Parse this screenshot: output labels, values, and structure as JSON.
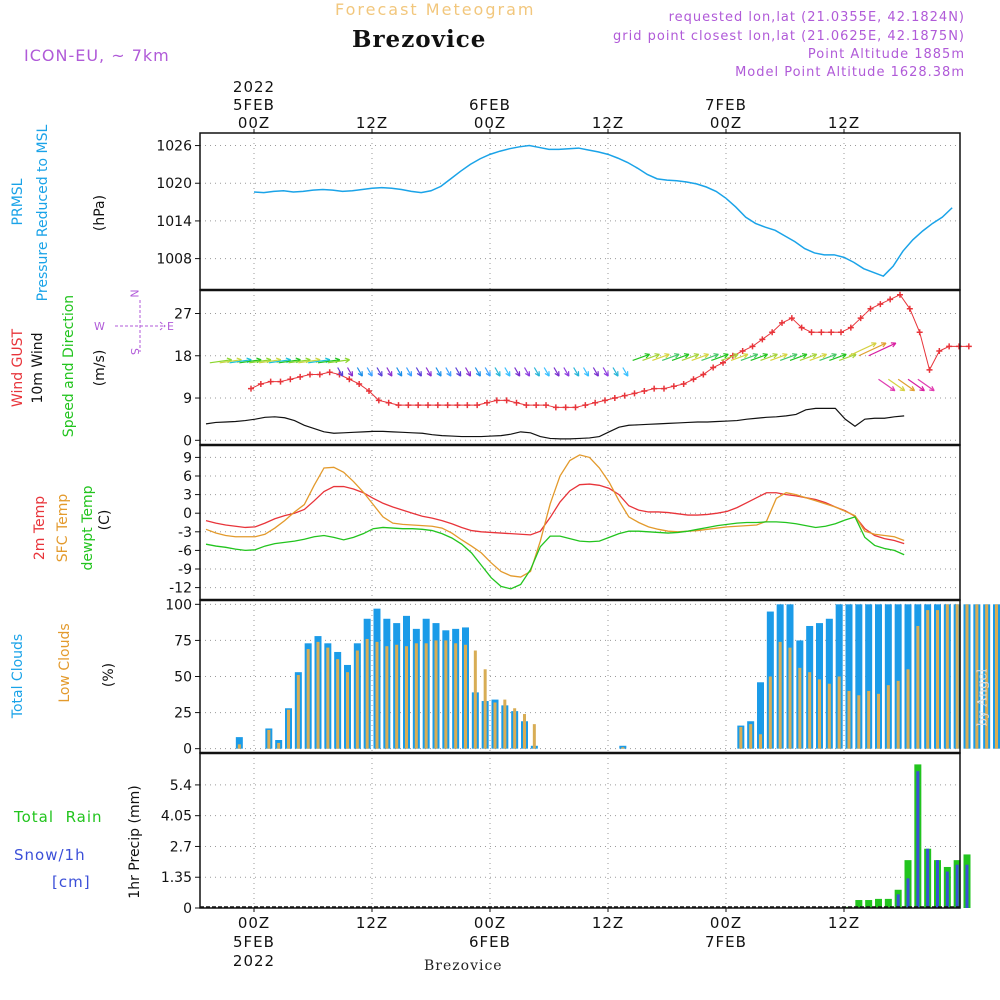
{
  "header": {
    "super_title": "Forecast Meteogram",
    "title": "Brezovice",
    "model": "ICON-EU, ~ 7km",
    "requested": "requested lon,lat (21.0355E, 42.1824N)",
    "grid_point": "grid point closest lon,lat (21.0625E, 42.1875N)",
    "point_altitude": "Point Altitude 1885m",
    "model_altitude": "Model Point Altitude 1628.38m",
    "footer": "Brezovice",
    "watermark": "by Angel"
  },
  "time_axis": {
    "top": [
      {
        "label": "00Z",
        "date": "5FEB",
        "year": "2022",
        "hour": 0
      },
      {
        "label": "12Z",
        "hour": 12
      },
      {
        "label": "00Z",
        "date": "6FEB",
        "hour": 24
      },
      {
        "label": "12Z",
        "hour": 36
      },
      {
        "label": "00Z",
        "date": "7FEB",
        "hour": 48
      },
      {
        "label": "12Z",
        "hour": 60
      }
    ],
    "bottom": [
      {
        "label": "00Z",
        "date": "5FEB",
        "year": "2022",
        "hour": 0
      },
      {
        "label": "12Z",
        "hour": 12
      },
      {
        "label": "00Z",
        "date": "6FEB",
        "hour": 24
      },
      {
        "label": "12Z",
        "hour": 36
      },
      {
        "label": "00Z",
        "date": "7FEB",
        "hour": 48
      },
      {
        "label": "12Z",
        "hour": 60
      }
    ]
  },
  "panel_labels": {
    "pressure": {
      "l1": "PRMSL",
      "l2": "Pressure Reduced to MSL",
      "unit": "(hPa)"
    },
    "wind": {
      "l1": "Wind GUST",
      "l2": "10m Wind",
      "l3": "Speed and Direction",
      "unit": "(m/s)",
      "compass_w": "W",
      "compass_e": "E",
      "compass_n": "N",
      "compass_s": "S"
    },
    "temp": {
      "l1": "2m Temp",
      "l2": "SFC Temp",
      "l3": "dewpt Temp",
      "unit": "(C)"
    },
    "clouds": {
      "l1": "Total Clouds",
      "l2": "Low Clouds",
      "unit": "(%)"
    },
    "precip": {
      "l1": "Total  Rain",
      "l2": "Snow/1h",
      "l3": "[cm]",
      "unit": "1hr Precip (mm)"
    }
  },
  "colors": {
    "pressure": "#1aa3e8",
    "gust": "#e8343a",
    "wind": "#111111",
    "temp2m": "#e8343a",
    "sfc": "#e39a2c",
    "dew": "#22c41e",
    "total_cloud": "#1b9be8",
    "low_cloud": "#d8ad55",
    "rain": "#22c41e",
    "snow": "#3b4fd8",
    "purple": "#b05ad8"
  },
  "chart_data": [
    {
      "type": "line",
      "name": "pressure",
      "x_hours_from": "2022-02-05 00Z",
      "ylim": [
        1003,
        1028
      ],
      "yticks": [
        1008,
        1014,
        1020,
        1026
      ],
      "ylabel": "(hPa)",
      "series": [
        {
          "name": "PRMSL",
          "values": [
            1018.6,
            1018.5,
            1018.7,
            1018.8,
            1018.6,
            1018.7,
            1018.9,
            1019.0,
            1018.9,
            1018.7,
            1018.8,
            1019.0,
            1019.2,
            1019.3,
            1019.2,
            1019.0,
            1018.7,
            1018.5,
            1018.8,
            1019.5,
            1020.7,
            1021.9,
            1023.0,
            1023.9,
            1024.6,
            1025.1,
            1025.5,
            1025.8,
            1026.0,
            1025.7,
            1025.4,
            1025.4,
            1025.5,
            1025.6,
            1025.3,
            1025.0,
            1024.6,
            1024.0,
            1023.3,
            1022.4,
            1021.4,
            1020.7,
            1020.5,
            1020.4,
            1020.2,
            1019.9,
            1019.4,
            1018.7,
            1017.6,
            1016.2,
            1014.6,
            1013.6,
            1013.0,
            1012.5,
            1011.6,
            1010.7,
            1009.6,
            1008.9,
            1008.6,
            1008.6,
            1008.2,
            1007.4,
            1006.4,
            1005.8,
            1005.2,
            1006.8,
            1009.2,
            1011.0,
            1012.4,
            1013.6,
            1014.6,
            1016.1
          ]
        }
      ]
    },
    {
      "type": "line",
      "name": "wind",
      "ylim": [
        -1,
        32
      ],
      "yticks": [
        0,
        9,
        18,
        27
      ],
      "ylabel": "(m/s)",
      "series": [
        {
          "name": "Wind GUST",
          "values": [
            11,
            12,
            12.5,
            12.5,
            13,
            13.5,
            14,
            14,
            14.5,
            14,
            13,
            12,
            10.5,
            8.5,
            8,
            7.5,
            7.5,
            7.5,
            7.5,
            7.5,
            7.5,
            7.5,
            7.5,
            7.5,
            8,
            8.5,
            8.5,
            8,
            7.5,
            7.5,
            7.5,
            7,
            7,
            7,
            7.5,
            8,
            8.5,
            9,
            9.5,
            10,
            10.5,
            11,
            11,
            11.5,
            12,
            13,
            14,
            15.5,
            16.5,
            18,
            19,
            20,
            21.5,
            23,
            25,
            26,
            24,
            23,
            23,
            23,
            23,
            24,
            26,
            28,
            29,
            30,
            31,
            28,
            23,
            15,
            19,
            20,
            20,
            20
          ]
        },
        {
          "name": "10m Wind",
          "values": [
            3.5,
            3.8,
            3.9,
            4.0,
            4.2,
            4.5,
            4.9,
            5.0,
            4.8,
            4.2,
            3.2,
            2.5,
            1.8,
            1.5,
            1.6,
            1.7,
            1.8,
            1.9,
            1.9,
            1.8,
            1.7,
            1.6,
            1.5,
            1.2,
            1.0,
            0.9,
            0.8,
            0.8,
            0.8,
            0.9,
            1.0,
            1.3,
            1.8,
            1.6,
            0.8,
            0.4,
            0.3,
            0.3,
            0.4,
            0.5,
            0.8,
            1.8,
            2.8,
            3.2,
            3.3,
            3.4,
            3.5,
            3.6,
            3.7,
            3.8,
            3.9,
            3.9,
            4.0,
            4.1,
            4.2,
            4.5,
            4.7,
            4.9,
            5.0,
            5.2,
            5.5,
            6.5,
            6.8,
            6.8,
            6.8,
            4.5,
            3.0,
            4.5,
            4.7,
            4.7,
            5.0,
            5.2
          ]
        }
      ]
    },
    {
      "type": "line",
      "name": "temperature",
      "ylim": [
        -14,
        11
      ],
      "yticks": [
        -12,
        -9,
        -6,
        -3,
        0,
        3,
        6,
        9
      ],
      "ylabel": "(C)",
      "series": [
        {
          "name": "2m Temp",
          "values": [
            -1.2,
            -1.6,
            -1.9,
            -2.1,
            -2.3,
            -2.2,
            -1.6,
            -0.9,
            -0.4,
            0,
            0.6,
            2.0,
            3.5,
            4.3,
            4.3,
            3.9,
            3.3,
            2.4,
            1.6,
            1.0,
            0.5,
            0,
            -0.5,
            -0.8,
            -1.2,
            -1.7,
            -2.3,
            -2.8,
            -3.0,
            -3.1,
            -3.2,
            -3.3,
            -3.4,
            -3.5,
            -2.9,
            -0.7,
            1.8,
            3.6,
            4.6,
            4.7,
            4.5,
            4.0,
            3.0,
            1.2,
            0.5,
            0.2,
            0.2,
            0.1,
            -0.1,
            -0.3,
            -0.3,
            -0.2,
            0,
            0.3,
            0.9,
            1.7,
            2.5,
            3.3,
            3.3,
            3.0,
            2.8,
            2.5,
            2.2,
            1.7,
            1.0,
            0.4,
            -0.5,
            -2.5,
            -3.6,
            -4.1,
            -4.4,
            -4.9
          ]
        },
        {
          "name": "SFC Temp",
          "values": [
            -2.6,
            -3.2,
            -3.6,
            -3.8,
            -3.8,
            -3.8,
            -3.4,
            -2.4,
            -1.2,
            0.2,
            1.4,
            4.5,
            7.3,
            7.4,
            6.6,
            5.1,
            3.4,
            1.4,
            -0.6,
            -1.6,
            -1.8,
            -1.9,
            -2.0,
            -2.1,
            -2.4,
            -3.2,
            -4.3,
            -5.3,
            -6.4,
            -8.0,
            -9.4,
            -10.1,
            -10.3,
            -9.4,
            -4.5,
            1.5,
            6.0,
            8.5,
            9.4,
            9.0,
            7.3,
            5.0,
            2.0,
            -0.6,
            -1.5,
            -2.2,
            -2.6,
            -2.9,
            -3.0,
            -2.9,
            -2.8,
            -2.6,
            -2.4,
            -2.2,
            -2.1,
            -2.0,
            -1.9,
            -1.3,
            2.4,
            3.3,
            3.0,
            2.5,
            2.0,
            1.5,
            1.0,
            0.3,
            -0.4,
            -2.9,
            -3.4,
            -3.6,
            -3.8,
            -4.4
          ]
        },
        {
          "name": "dewpt Temp",
          "values": [
            -5.0,
            -5.3,
            -5.5,
            -5.8,
            -6.0,
            -5.9,
            -5.3,
            -4.9,
            -4.7,
            -4.5,
            -4.2,
            -3.8,
            -3.6,
            -3.9,
            -4.3,
            -3.9,
            -3.3,
            -2.5,
            -2.3,
            -2.4,
            -2.5,
            -2.5,
            -2.6,
            -2.8,
            -3.3,
            -4.0,
            -5.0,
            -6.4,
            -8.4,
            -10.4,
            -11.8,
            -12.2,
            -11.5,
            -9.1,
            -5.4,
            -3.7,
            -3.7,
            -4.1,
            -4.5,
            -4.6,
            -4.5,
            -3.9,
            -3.3,
            -2.9,
            -2.9,
            -3.0,
            -3.1,
            -3.2,
            -3.1,
            -2.9,
            -2.6,
            -2.3,
            -2.0,
            -1.8,
            -1.6,
            -1.5,
            -1.5,
            -1.4,
            -1.4,
            -1.5,
            -1.7,
            -2.0,
            -2.3,
            -2.1,
            -1.7,
            -1.1,
            -0.6,
            -3.9,
            -5.2,
            -5.7,
            -6.0,
            -6.7
          ]
        }
      ]
    },
    {
      "type": "bar",
      "name": "clouds",
      "ylim": [
        -3,
        103
      ],
      "yticks": [
        0,
        25,
        50,
        75,
        100
      ],
      "ylabel": "(%)",
      "series": [
        {
          "name": "Total Clouds",
          "values": [
            0,
            0,
            0,
            0,
            8,
            0,
            0,
            14,
            6,
            28,
            53,
            73,
            78,
            73,
            67,
            58,
            73,
            90,
            97,
            90,
            87,
            92,
            83,
            90,
            87,
            82,
            83,
            84,
            39,
            33,
            34,
            30,
            26,
            19,
            2,
            0,
            0,
            0,
            0,
            0,
            0,
            0,
            0,
            2,
            0,
            0,
            0,
            0,
            0,
            0,
            0,
            0,
            0,
            0,
            0,
            16,
            19,
            46,
            95,
            100,
            100,
            75,
            85,
            87,
            90,
            100,
            100,
            100,
            100,
            100,
            100,
            100,
            100,
            100,
            100,
            100,
            100,
            100,
            100,
            100,
            100,
            100
          ]
        },
        {
          "name": "Low Clouds",
          "values": [
            0,
            0,
            0,
            0,
            3,
            0,
            0,
            13,
            4,
            27,
            51,
            69,
            74,
            70,
            62,
            53,
            68,
            76,
            74,
            71,
            72,
            71,
            73,
            73,
            75,
            75,
            73,
            72,
            68,
            55,
            32,
            34,
            28,
            24,
            17,
            0,
            0,
            0,
            0,
            0,
            0,
            0,
            0,
            1,
            0,
            0,
            0,
            0,
            0,
            0,
            0,
            0,
            0,
            0,
            0,
            15,
            17,
            10,
            50,
            74,
            70,
            56,
            53,
            48,
            45,
            50,
            40,
            37,
            40,
            38,
            44,
            47,
            55,
            85,
            96,
            96,
            100,
            100,
            100,
            100,
            100,
            100
          ]
        }
      ]
    },
    {
      "type": "bar",
      "name": "precipitation",
      "ylim": [
        0,
        6.8
      ],
      "yticks": [
        0,
        1.35,
        2.7,
        4.05,
        5.4
      ],
      "ylabel": "1hr Precip (mm)",
      "series": [
        {
          "name": "Total Rain",
          "values": [
            0,
            0,
            0,
            0,
            0,
            0,
            0,
            0,
            0,
            0,
            0,
            0,
            0,
            0,
            0,
            0,
            0,
            0,
            0,
            0,
            0,
            0,
            0,
            0,
            0,
            0,
            0,
            0,
            0,
            0,
            0,
            0,
            0,
            0,
            0,
            0,
            0,
            0,
            0,
            0,
            0,
            0,
            0,
            0,
            0,
            0,
            0,
            0,
            0,
            0,
            0,
            0,
            0,
            0,
            0,
            0,
            0,
            0,
            0,
            0,
            0,
            0,
            0,
            0,
            0,
            0,
            0.05,
            0.35,
            0.35,
            0.4,
            0.4,
            0.8,
            2.1,
            6.3,
            2.6,
            2.1,
            1.8,
            2.1,
            2.35
          ]
        },
        {
          "name": "Snow/1h",
          "values": [
            0,
            0,
            0,
            0,
            0,
            0,
            0,
            0,
            0,
            0,
            0,
            0,
            0,
            0,
            0,
            0,
            0,
            0,
            0,
            0,
            0,
            0,
            0,
            0,
            0,
            0,
            0,
            0,
            0,
            0,
            0,
            0,
            0,
            0,
            0,
            0,
            0,
            0,
            0,
            0,
            0,
            0,
            0,
            0,
            0,
            0,
            0,
            0,
            0,
            0,
            0,
            0,
            0,
            0,
            0,
            0,
            0,
            0,
            0,
            0,
            0,
            0,
            0,
            0,
            0,
            0,
            0,
            0,
            0,
            0,
            0,
            0.6,
            1.3,
            6.0,
            2.6,
            2.1,
            1.6,
            1.9,
            1.9
          ]
        }
      ]
    }
  ]
}
